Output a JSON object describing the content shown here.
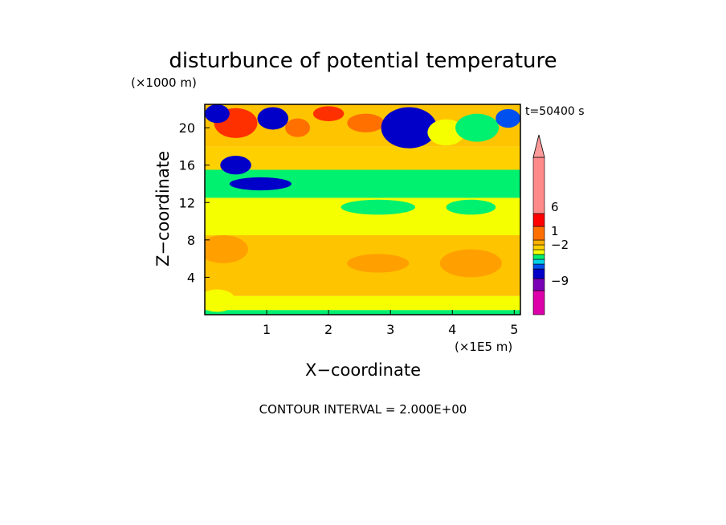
{
  "chart_data": {
    "type": "heatmap",
    "title": "disturbunce of potential temperature",
    "y_unit": "(×1000 m)",
    "x_unit": "(×1E5 m)",
    "time_label": "t=50400 s",
    "xlabel": "X−coordinate",
    "ylabel": "Z−coordinate",
    "footer": "CONTOUR INTERVAL = 2.000E+00",
    "xlim": [
      0,
      5.1
    ],
    "ylim": [
      0,
      22.5
    ],
    "x_ticks": [
      "1",
      "2",
      "3",
      "4",
      "5"
    ],
    "y_ticks": [
      "4",
      "8",
      "12",
      "16",
      "20"
    ],
    "colorbar_labels": [
      "6",
      "1",
      "−2",
      "−9"
    ],
    "colorbar_colors": [
      "#dd00aa",
      "#7a00b5",
      "#0000c8",
      "#0050f0",
      "#00d0e8",
      "#00f070",
      "#f5ff00",
      "#ffd000",
      "#ffb000",
      "#ff7000",
      "#ff0000",
      "#ff7a7a",
      "#ff9a9a"
    ],
    "field_bands": [
      {
        "z0": 0.0,
        "z1": 0.5,
        "color": "#00f070"
      },
      {
        "z0": 0.5,
        "z1": 2.0,
        "color": "#f5ff00"
      },
      {
        "z0": 2.0,
        "z1": 8.5,
        "color": "#ffc400"
      },
      {
        "z0": 8.5,
        "z1": 12.5,
        "color": "#f5ff00"
      },
      {
        "z0": 12.5,
        "z1": 15.5,
        "color": "#00f070"
      },
      {
        "z0": 15.5,
        "z1": 18.0,
        "color": "#ffd000"
      },
      {
        "z0": 18.0,
        "z1": 22.5,
        "color": "#ffc400"
      }
    ],
    "field_blobs": [
      {
        "x": 0.5,
        "z": 20.5,
        "rx": 0.35,
        "rz": 1.6,
        "color": "#ff3000"
      },
      {
        "x": 0.2,
        "z": 21.5,
        "rx": 0.2,
        "rz": 1.0,
        "color": "#0000c8"
      },
      {
        "x": 1.1,
        "z": 21.0,
        "rx": 0.25,
        "rz": 1.2,
        "color": "#0000c8"
      },
      {
        "x": 1.5,
        "z": 20.0,
        "rx": 0.2,
        "rz": 1.0,
        "color": "#ff7000"
      },
      {
        "x": 2.0,
        "z": 21.5,
        "rx": 0.25,
        "rz": 0.8,
        "color": "#ff3000"
      },
      {
        "x": 2.6,
        "z": 20.5,
        "rx": 0.3,
        "rz": 1.0,
        "color": "#ff7000"
      },
      {
        "x": 3.3,
        "z": 20.0,
        "rx": 0.45,
        "rz": 2.2,
        "color": "#0000c8"
      },
      {
        "x": 3.9,
        "z": 19.5,
        "rx": 0.3,
        "rz": 1.4,
        "color": "#f5ff00"
      },
      {
        "x": 4.4,
        "z": 20.0,
        "rx": 0.35,
        "rz": 1.5,
        "color": "#00f070"
      },
      {
        "x": 4.9,
        "z": 21.0,
        "rx": 0.2,
        "rz": 1.0,
        "color": "#0050f0"
      },
      {
        "x": 0.9,
        "z": 14.0,
        "rx": 0.5,
        "rz": 0.7,
        "color": "#0000c8"
      },
      {
        "x": 0.5,
        "z": 16.0,
        "rx": 0.25,
        "rz": 1.0,
        "color": "#0000c8"
      },
      {
        "x": 2.8,
        "z": 11.5,
        "rx": 0.6,
        "rz": 0.8,
        "color": "#00f070"
      },
      {
        "x": 4.3,
        "z": 11.5,
        "rx": 0.4,
        "rz": 0.8,
        "color": "#00f070"
      },
      {
        "x": 0.3,
        "z": 7.0,
        "rx": 0.4,
        "rz": 1.5,
        "color": "#ffa000"
      },
      {
        "x": 2.8,
        "z": 5.5,
        "rx": 0.5,
        "rz": 1.0,
        "color": "#ffa000"
      },
      {
        "x": 4.3,
        "z": 5.5,
        "rx": 0.5,
        "rz": 1.5,
        "color": "#ffa000"
      },
      {
        "x": 0.2,
        "z": 1.5,
        "rx": 0.3,
        "rz": 1.2,
        "color": "#f5ff00"
      }
    ]
  }
}
